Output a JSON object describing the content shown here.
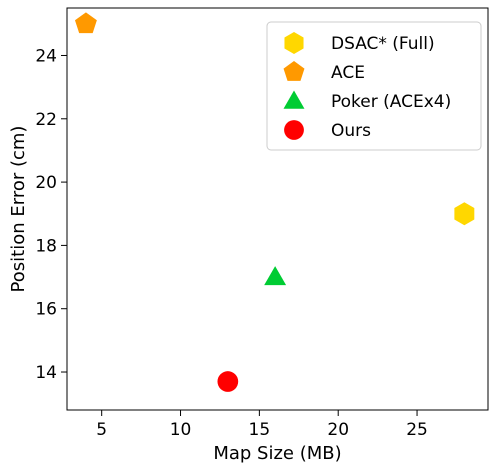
{
  "chart_data": {
    "type": "scatter",
    "title": "",
    "xlabel": "Map Size (MB)",
    "ylabel": "Position Error (cm)",
    "xlim": [
      2.8,
      29.5
    ],
    "ylim": [
      12.8,
      25.5
    ],
    "xticks": [
      5,
      10,
      15,
      20,
      25
    ],
    "yticks": [
      14,
      16,
      18,
      20,
      22,
      24
    ],
    "grid": false,
    "legend_position": "top-right",
    "series": [
      {
        "name": "DSAC* (Full)",
        "marker": "hexagon",
        "color": "#FFD700",
        "points": [
          {
            "x": 28,
            "y": 19
          }
        ]
      },
      {
        "name": "ACE",
        "marker": "pentagon",
        "color": "#FF9900",
        "points": [
          {
            "x": 4,
            "y": 25
          }
        ]
      },
      {
        "name": "Poker (ACEx4)",
        "marker": "triangle",
        "color": "#00CC33",
        "points": [
          {
            "x": 16,
            "y": 17
          }
        ]
      },
      {
        "name": "Ours",
        "marker": "circle",
        "color": "#FF0000",
        "points": [
          {
            "x": 13,
            "y": 13.7
          }
        ]
      }
    ]
  }
}
